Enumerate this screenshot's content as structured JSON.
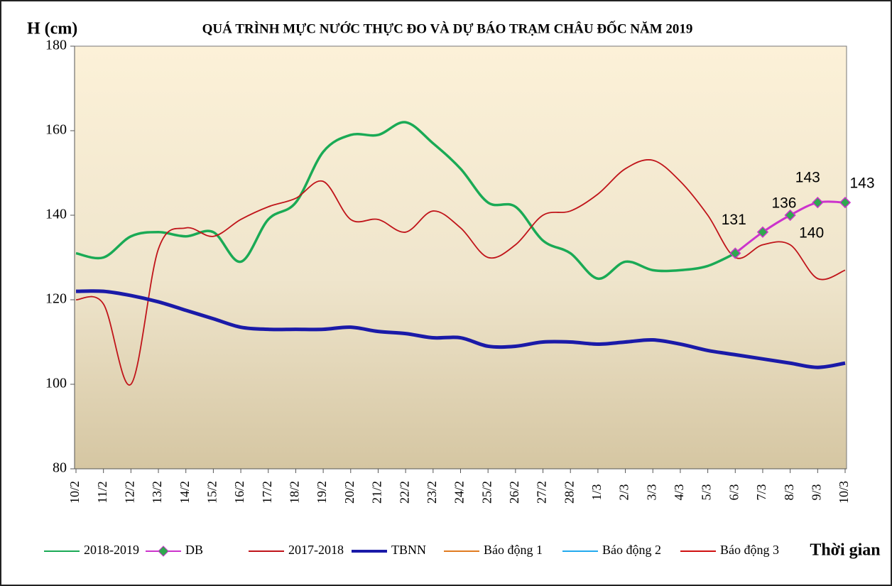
{
  "chart_data": {
    "type": "line",
    "title": "QUÁ TRÌNH MỰC NƯỚC THỰC ĐO VÀ DỰ BÁO TRẠM CHÂU ĐỐC NĂM 2019",
    "y_label": "H (cm)",
    "x_label": "Thời gian",
    "categories": [
      "10/2",
      "11/2",
      "12/2",
      "13/2",
      "14/2",
      "15/2",
      "16/2",
      "17/2",
      "18/2",
      "19/2",
      "20/2",
      "21/2",
      "22/2",
      "23/2",
      "24/2",
      "25/2",
      "26/2",
      "27/2",
      "28/2",
      "1/3",
      "2/3",
      "3/3",
      "4/3",
      "5/3",
      "6/3",
      "7/3",
      "8/3",
      "9/3",
      "10/3"
    ],
    "ylim": [
      80,
      180
    ],
    "yticks": [
      80,
      100,
      120,
      140,
      160,
      180
    ],
    "series": [
      {
        "name": "2018-2019",
        "color": "#1aaa55",
        "values": [
          131,
          130,
          135,
          136,
          135,
          136,
          129,
          139,
          143,
          155,
          159,
          159,
          162,
          157,
          151,
          143,
          142,
          134,
          131,
          125,
          129,
          127,
          127,
          128,
          131,
          null,
          null,
          null,
          null
        ]
      },
      {
        "name": "DB",
        "color": "#cc33cc",
        "marker_color": "#2fa84f",
        "values": [
          null,
          null,
          null,
          null,
          null,
          null,
          null,
          null,
          null,
          null,
          null,
          null,
          null,
          null,
          null,
          null,
          null,
          null,
          null,
          null,
          null,
          null,
          null,
          null,
          131,
          136,
          140,
          143,
          143
        ]
      },
      {
        "name": "2017-2018",
        "color": "#c0141a",
        "values": [
          120,
          119,
          100,
          132,
          137,
          135,
          139,
          142,
          144,
          148,
          139,
          139,
          136,
          141,
          137,
          130,
          133,
          140,
          141,
          145,
          151,
          153,
          148,
          140,
          130,
          133,
          133,
          125,
          127
        ]
      },
      {
        "name": "TBNN",
        "color": "#1a1aa8",
        "values": [
          122,
          122,
          121,
          119.5,
          117.5,
          115.5,
          113.5,
          113,
          113,
          113,
          113.5,
          112.5,
          112,
          111,
          111,
          109,
          109,
          110,
          110,
          109.5,
          110,
          110.5,
          109.5,
          108,
          107,
          106,
          105,
          104,
          105
        ]
      },
      {
        "name": "Báo động 1",
        "color": "#e07b20"
      },
      {
        "name": "Báo động 2",
        "color": "#22aaee"
      },
      {
        "name": "Báo động 3",
        "color": "#d01010"
      }
    ]
  }
}
